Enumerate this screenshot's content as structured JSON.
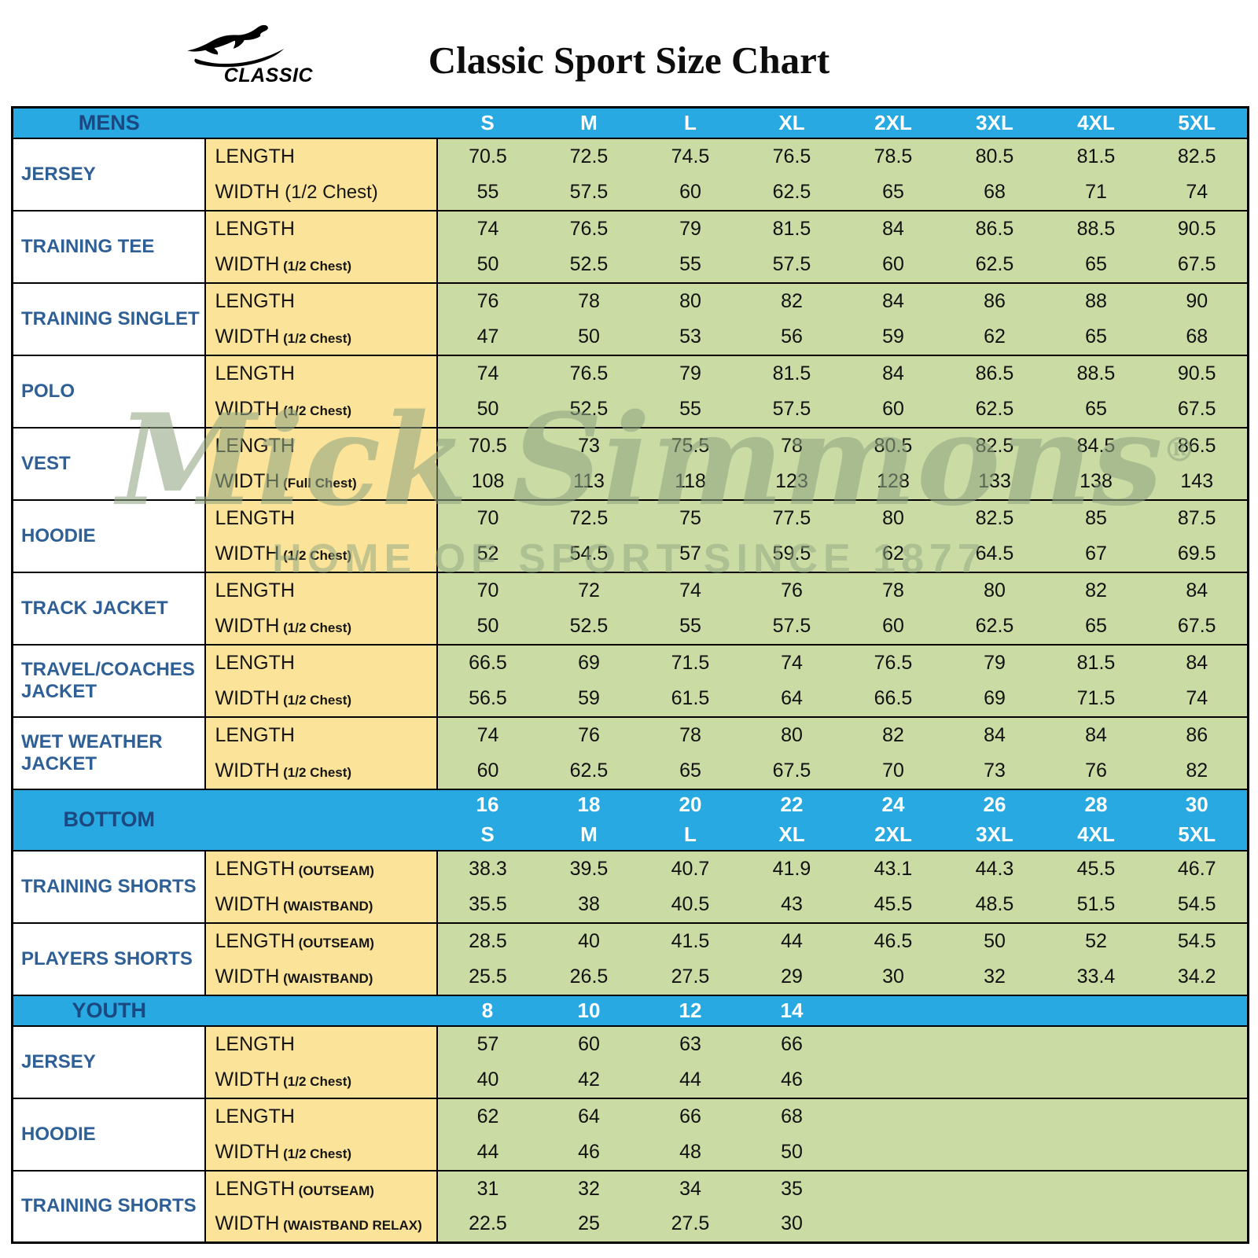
{
  "page": {
    "brand": "CLASSIC",
    "title": "Classic Sport Size Chart"
  },
  "watermark": {
    "script": "Mick Simmons",
    "registered": "®",
    "tagline": "HOME OF SPORT SINCE 1877"
  },
  "colors": {
    "header_bg": "#29A9E1",
    "label_bg": "#FBE49A",
    "data_bg": "#CADBA4",
    "product_text": "#2E5F96",
    "section_text": "#1B4880",
    "size_text": "#FFFFFF",
    "border": "#000000"
  },
  "chart_data": {
    "type": "table",
    "title": "Classic Sport Size Chart",
    "sections": [
      {
        "name": "MENS",
        "header_rows": [
          [
            "S",
            "M",
            "L",
            "XL",
            "2XL",
            "3XL",
            "4XL",
            "5XL"
          ]
        ],
        "groups": [
          {
            "product": "JERSEY",
            "rows": [
              {
                "label": "LENGTH",
                "sub": "",
                "values": [
                  "70.5",
                  "72.5",
                  "74.5",
                  "76.5",
                  "78.5",
                  "80.5",
                  "81.5",
                  "82.5"
                ]
              },
              {
                "label": "WIDTH",
                "sub": "(1/2 Chest)",
                "sub_large": true,
                "values": [
                  "55",
                  "57.5",
                  "60",
                  "62.5",
                  "65",
                  "68",
                  "71",
                  "74"
                ]
              }
            ]
          },
          {
            "product": "TRAINING TEE",
            "rows": [
              {
                "label": "LENGTH",
                "sub": "",
                "values": [
                  "74",
                  "76.5",
                  "79",
                  "81.5",
                  "84",
                  "86.5",
                  "88.5",
                  "90.5"
                ]
              },
              {
                "label": "WIDTH",
                "sub": "(1/2 Chest)",
                "values": [
                  "50",
                  "52.5",
                  "55",
                  "57.5",
                  "60",
                  "62.5",
                  "65",
                  "67.5"
                ]
              }
            ]
          },
          {
            "product": "TRAINING SINGLET",
            "rows": [
              {
                "label": "LENGTH",
                "sub": "",
                "values": [
                  "76",
                  "78",
                  "80",
                  "82",
                  "84",
                  "86",
                  "88",
                  "90"
                ]
              },
              {
                "label": "WIDTH",
                "sub": "(1/2 Chest)",
                "values": [
                  "47",
                  "50",
                  "53",
                  "56",
                  "59",
                  "62",
                  "65",
                  "68"
                ]
              }
            ]
          },
          {
            "product": "POLO",
            "rows": [
              {
                "label": "LENGTH",
                "sub": "",
                "values": [
                  "74",
                  "76.5",
                  "79",
                  "81.5",
                  "84",
                  "86.5",
                  "88.5",
                  "90.5"
                ]
              },
              {
                "label": "WIDTH",
                "sub": "(1/2 Chest)",
                "values": [
                  "50",
                  "52.5",
                  "55",
                  "57.5",
                  "60",
                  "62.5",
                  "65",
                  "67.5"
                ]
              }
            ]
          },
          {
            "product": "VEST",
            "rows": [
              {
                "label": "LENGTH",
                "sub": "",
                "values": [
                  "70.5",
                  "73",
                  "75.5",
                  "78",
                  "80.5",
                  "82.5",
                  "84.5",
                  "86.5"
                ]
              },
              {
                "label": "WIDTH",
                "sub": "(Full Chest)",
                "values": [
                  "108",
                  "113",
                  "118",
                  "123",
                  "128",
                  "133",
                  "138",
                  "143"
                ]
              }
            ]
          },
          {
            "product": "HOODIE",
            "rows": [
              {
                "label": "LENGTH",
                "sub": "",
                "values": [
                  "70",
                  "72.5",
                  "75",
                  "77.5",
                  "80",
                  "82.5",
                  "85",
                  "87.5"
                ]
              },
              {
                "label": "WIDTH",
                "sub": "(1/2 Chest)",
                "values": [
                  "52",
                  "54.5",
                  "57",
                  "59.5",
                  "62",
                  "64.5",
                  "67",
                  "69.5"
                ]
              }
            ]
          },
          {
            "product": "TRACK JACKET",
            "rows": [
              {
                "label": "LENGTH",
                "sub": "",
                "values": [
                  "70",
                  "72",
                  "74",
                  "76",
                  "78",
                  "80",
                  "82",
                  "84"
                ]
              },
              {
                "label": "WIDTH",
                "sub": "(1/2 Chest)",
                "values": [
                  "50",
                  "52.5",
                  "55",
                  "57.5",
                  "60",
                  "62.5",
                  "65",
                  "67.5"
                ]
              }
            ]
          },
          {
            "product": "TRAVEL/COACHES JACKET",
            "rows": [
              {
                "label": "LENGTH",
                "sub": "",
                "values": [
                  "66.5",
                  "69",
                  "71.5",
                  "74",
                  "76.5",
                  "79",
                  "81.5",
                  "84"
                ]
              },
              {
                "label": "WIDTH",
                "sub": "(1/2 Chest)",
                "values": [
                  "56.5",
                  "59",
                  "61.5",
                  "64",
                  "66.5",
                  "69",
                  "71.5",
                  "74"
                ]
              }
            ]
          },
          {
            "product": "WET WEATHER JACKET",
            "rows": [
              {
                "label": "LENGTH",
                "sub": "",
                "values": [
                  "74",
                  "76",
                  "78",
                  "80",
                  "82",
                  "84",
                  "84",
                  "86"
                ]
              },
              {
                "label": "WIDTH",
                "sub": "(1/2 Chest)",
                "values": [
                  "60",
                  "62.5",
                  "65",
                  "67.5",
                  "70",
                  "73",
                  "76",
                  "82"
                ]
              }
            ]
          }
        ]
      },
      {
        "name": "BOTTOM",
        "header_rows": [
          [
            "16",
            "18",
            "20",
            "22",
            "24",
            "26",
            "28",
            "30"
          ],
          [
            "S",
            "M",
            "L",
            "XL",
            "2XL",
            "3XL",
            "4XL",
            "5XL"
          ]
        ],
        "groups": [
          {
            "product": "TRAINING SHORTS",
            "rows": [
              {
                "label": "LENGTH",
                "sub": "(OUTSEAM)",
                "values": [
                  "38.3",
                  "39.5",
                  "40.7",
                  "41.9",
                  "43.1",
                  "44.3",
                  "45.5",
                  "46.7"
                ]
              },
              {
                "label": "WIDTH",
                "sub": "(WAISTBAND)",
                "values": [
                  "35.5",
                  "38",
                  "40.5",
                  "43",
                  "45.5",
                  "48.5",
                  "51.5",
                  "54.5"
                ]
              }
            ]
          },
          {
            "product": "PLAYERS SHORTS",
            "rows": [
              {
                "label": "LENGTH",
                "sub": "(OUTSEAM)",
                "values": [
                  "28.5",
                  "40",
                  "41.5",
                  "44",
                  "46.5",
                  "50",
                  "52",
                  "54.5"
                ]
              },
              {
                "label": "WIDTH",
                "sub": "(WAISTBAND)",
                "values": [
                  "25.5",
                  "26.5",
                  "27.5",
                  "29",
                  "30",
                  "32",
                  "33.4",
                  "34.2"
                ]
              }
            ]
          }
        ]
      },
      {
        "name": "YOUTH",
        "header_rows": [
          [
            "8",
            "10",
            "12",
            "14"
          ]
        ],
        "groups": [
          {
            "product": "JERSEY",
            "rows": [
              {
                "label": "LENGTH",
                "sub": "",
                "values": [
                  "57",
                  "60",
                  "63",
                  "66"
                ]
              },
              {
                "label": "WIDTH",
                "sub": "(1/2 Chest)",
                "values": [
                  "40",
                  "42",
                  "44",
                  "46"
                ]
              }
            ]
          },
          {
            "product": "HOODIE",
            "rows": [
              {
                "label": "LENGTH",
                "sub": "",
                "values": [
                  "62",
                  "64",
                  "66",
                  "68"
                ]
              },
              {
                "label": "WIDTH",
                "sub": "(1/2 Chest)",
                "values": [
                  "44",
                  "46",
                  "48",
                  "50"
                ]
              }
            ]
          },
          {
            "product": "TRAINING SHORTS",
            "rows": [
              {
                "label": "LENGTH",
                "sub": "(OUTSEAM)",
                "values": [
                  "31",
                  "32",
                  "34",
                  "35"
                ]
              },
              {
                "label": "WIDTH",
                "sub": "(WAISTBAND RELAX)",
                "values": [
                  "22.5",
                  "25",
                  "27.5",
                  "30"
                ]
              }
            ]
          }
        ]
      }
    ]
  }
}
